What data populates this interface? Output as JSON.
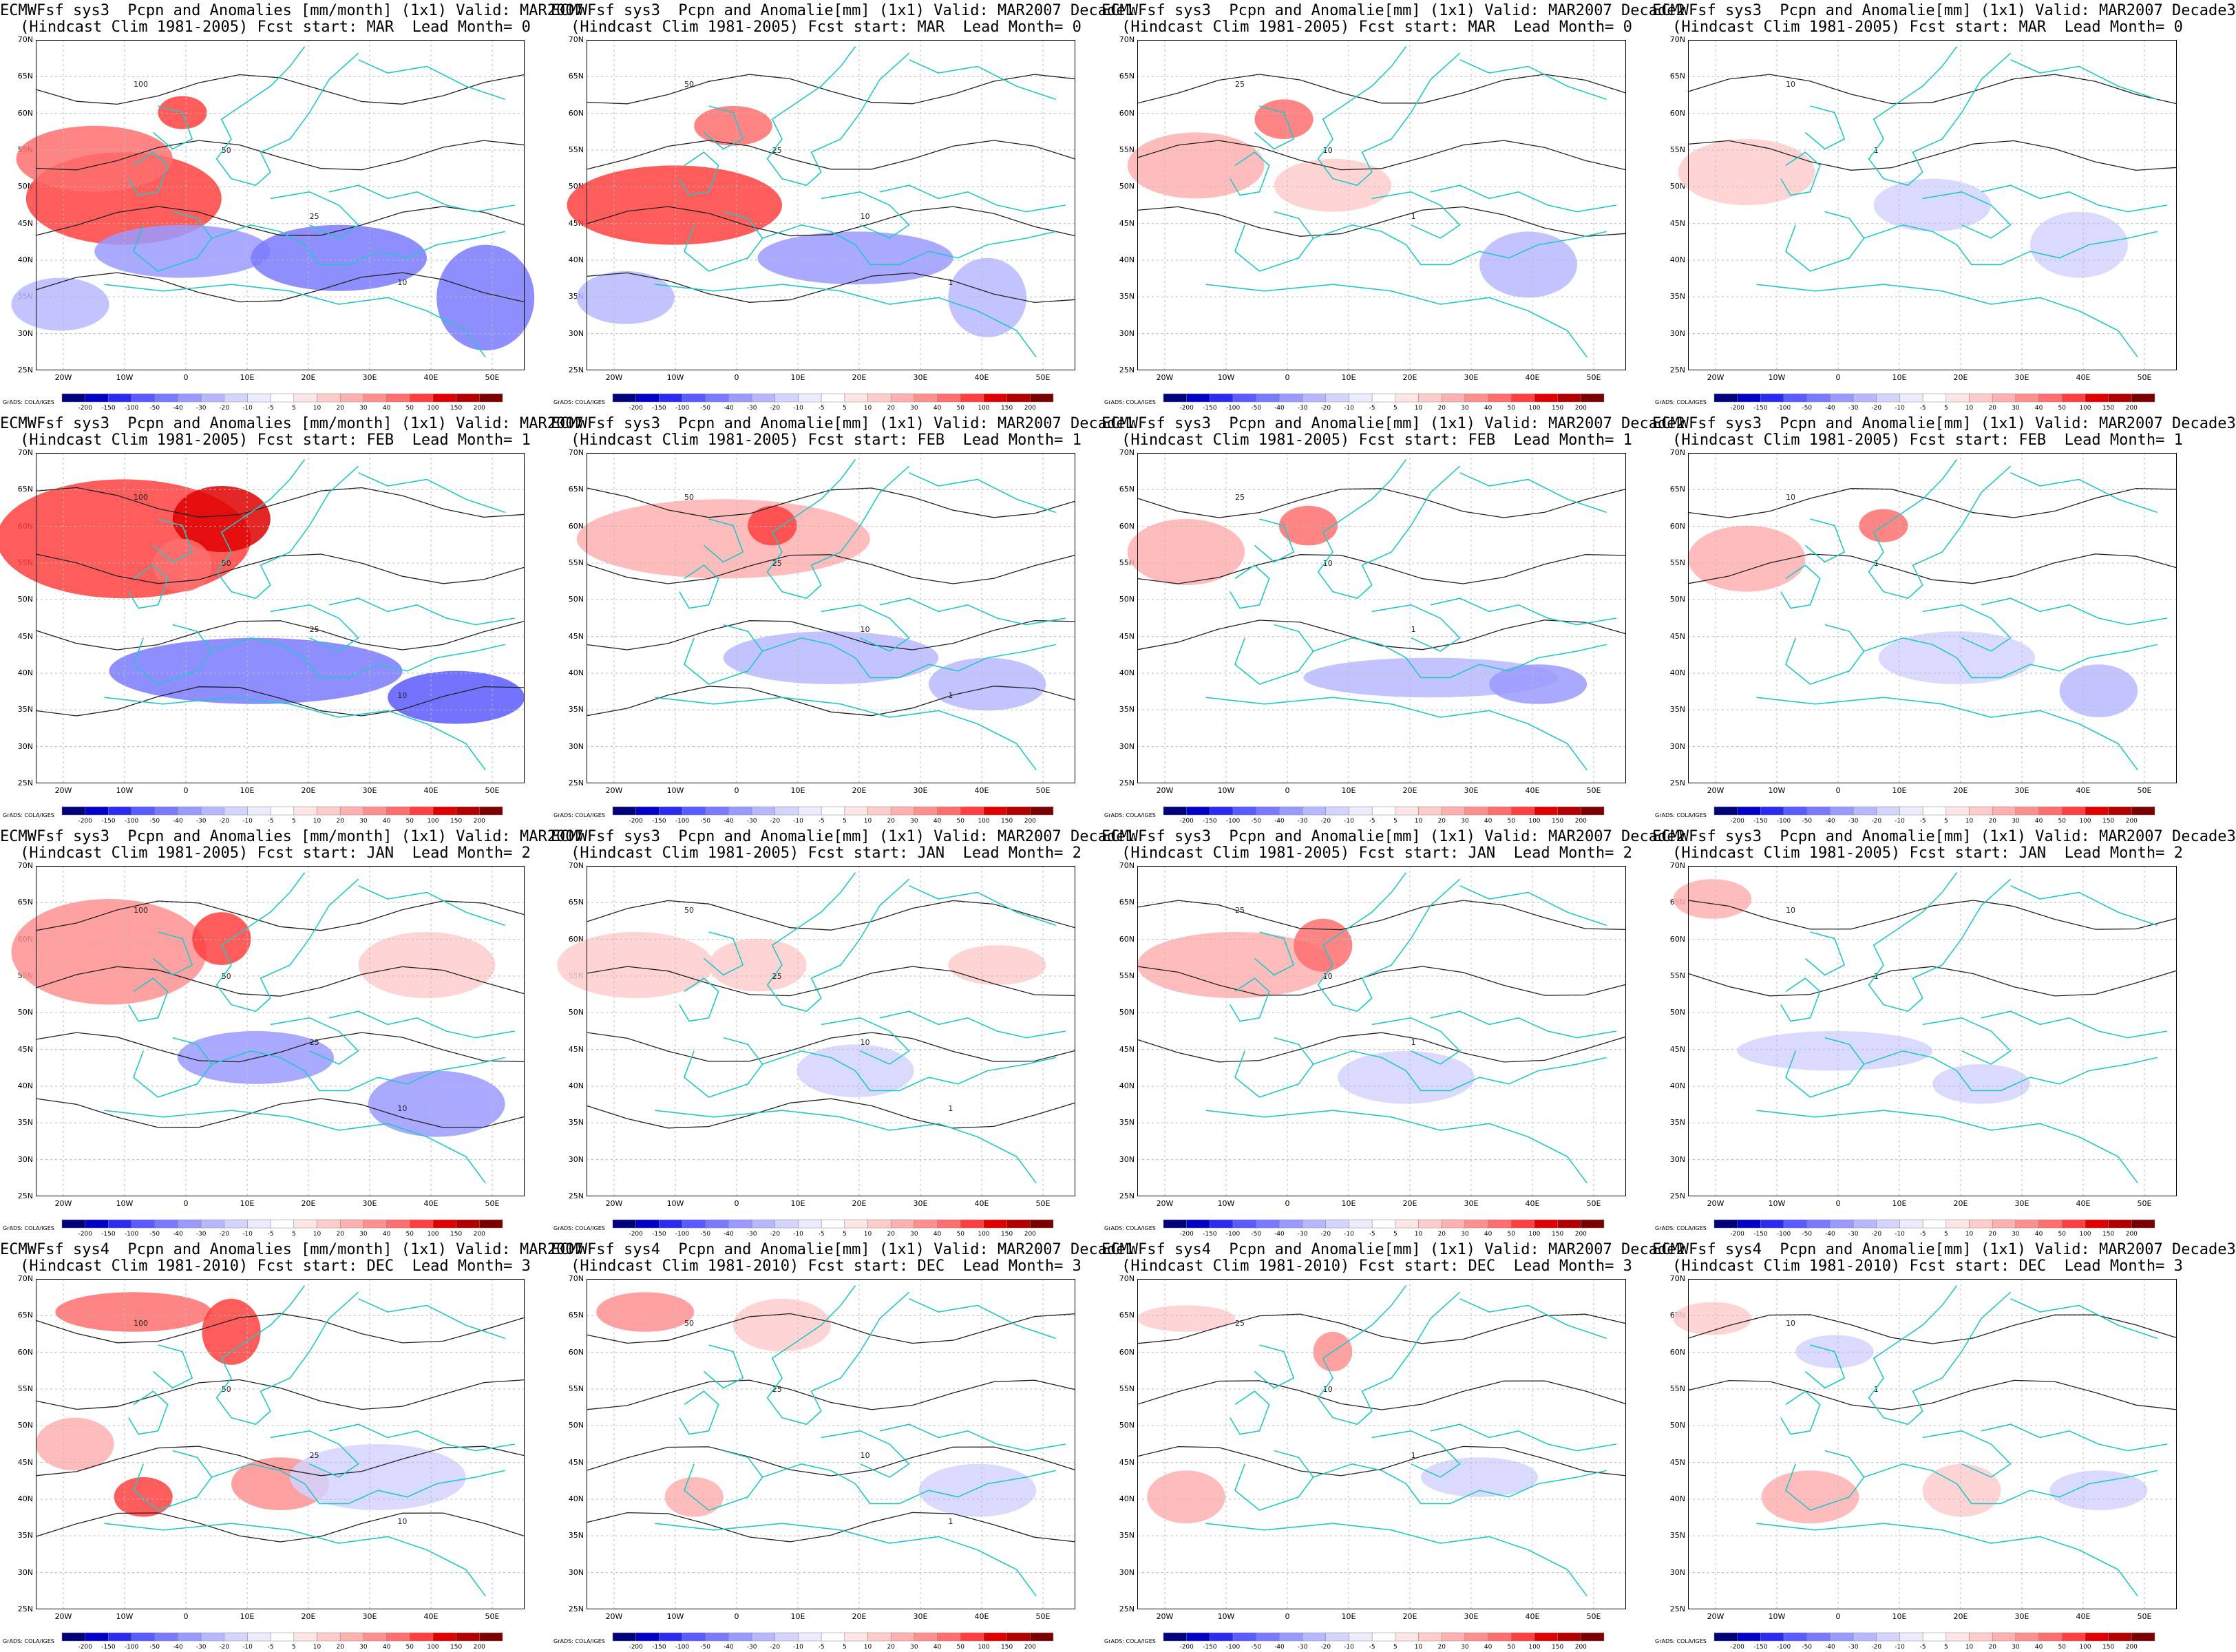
{
  "panels": [
    {
      "title1": "ECMWFsf sys3  Pcpn and Anomalies [mm/month] (1x1) Valid: MAR2007",
      "title2": "(Hindcast Clim 1981-2005) Fcst start: MAR  Lead Month= 0"
    },
    {
      "title1": "ECMWFsf sys3  Pcpn and Anomalie[mm] (1x1) Valid: MAR2007 Decade1",
      "title2": "(Hindcast Clim 1981-2005) Fcst start: MAR  Lead Month= 0"
    },
    {
      "title1": "ECMWFsf sys3  Pcpn and Anomalie[mm] (1x1) Valid: MAR2007 Decade2",
      "title2": "(Hindcast Clim 1981-2005) Fcst start: MAR  Lead Month= 0"
    },
    {
      "title1": "ECMWFsf sys3  Pcpn and Anomalie[mm] (1x1) Valid: MAR2007 Decade3",
      "title2": "(Hindcast Clim 1981-2005) Fcst start: MAR  Lead Month= 0"
    },
    {
      "title1": "ECMWFsf sys3  Pcpn and Anomalies [mm/month] (1x1) Valid: MAR2007",
      "title2": "(Hindcast Clim 1981-2005) Fcst start: FEB  Lead Month= 1"
    },
    {
      "title1": "ECMWFsf sys3  Pcpn and Anomalie[mm] (1x1) Valid: MAR2007 Decade1",
      "title2": "(Hindcast Clim 1981-2005) Fcst start: FEB  Lead Month= 1"
    },
    {
      "title1": "ECMWFsf sys3  Pcpn and Anomalie[mm] (1x1) Valid: MAR2007 Decade2",
      "title2": "(Hindcast Clim 1981-2005) Fcst start: FEB  Lead Month= 1"
    },
    {
      "title1": "ECMWFsf sys3  Pcpn and Anomalie[mm] (1x1) Valid: MAR2007 Decade3",
      "title2": "(Hindcast Clim 1981-2005) Fcst start: FEB  Lead Month= 1"
    },
    {
      "title1": "ECMWFsf sys3  Pcpn and Anomalies [mm/month] (1x1) Valid: MAR2007",
      "title2": "(Hindcast Clim 1981-2005) Fcst start: JAN  Lead Month= 2"
    },
    {
      "title1": "ECMWFsf sys3  Pcpn and Anomalie[mm] (1x1) Valid: MAR2007 Decade1",
      "title2": "(Hindcast Clim 1981-2005) Fcst start: JAN  Lead Month= 2"
    },
    {
      "title1": "ECMWFsf sys3  Pcpn and Anomalie[mm] (1x1) Valid: MAR2007 Decade2",
      "title2": "(Hindcast Clim 1981-2005) Fcst start: JAN  Lead Month= 2"
    },
    {
      "title1": "ECMWFsf sys3  Pcpn and Anomalie[mm] (1x1) Valid: MAR2007 Decade3",
      "title2": "(Hindcast Clim 1981-2005) Fcst start: JAN  Lead Month= 2"
    },
    {
      "title1": "ECMWFsf sys4  Pcpn and Anomalies [mm/month] (1x1) Valid: MAR2007",
      "title2": "(Hindcast Clim 1981-2010) Fcst start: DEC  Lead Month= 3"
    },
    {
      "title1": "ECMWFsf sys4  Pcpn and Anomalie[mm] (1x1) Valid: MAR2007 Decade1",
      "title2": "(Hindcast Clim 1981-2010) Fcst start: DEC  Lead Month= 3"
    },
    {
      "title1": "ECMWFsf sys4  Pcpn and Anomalie[mm] (1x1) Valid: MAR2007 Decade2",
      "title2": "(Hindcast Clim 1981-2010) Fcst start: DEC  Lead Month= 3"
    },
    {
      "title1": "ECMWFsf sys4  Pcpn and Anomalie[mm] (1x1) Valid: MAR2007 Decade3",
      "title2": "(Hindcast Clim 1981-2010) Fcst start: DEC  Lead Month= 3"
    }
  ],
  "lat_labels": [
    "70N",
    "65N",
    "60N",
    "55N",
    "50N",
    "45N",
    "40N",
    "35N",
    "30N",
    "25N"
  ],
  "lon_labels": [
    "20W",
    "10W",
    "0",
    "10E",
    "20E",
    "30E",
    "40E",
    "50E"
  ],
  "colorbar": {
    "values": [
      "-200",
      "-150",
      "-100",
      "-50",
      "-40",
      "-30",
      "-20",
      "-10",
      "-5",
      "5",
      "10",
      "20",
      "30",
      "40",
      "50",
      "100",
      "150",
      "200"
    ],
    "colors": [
      "#00007a",
      "#0000c8",
      "#2a2af0",
      "#5a5aff",
      "#7a7aff",
      "#9a9aff",
      "#b8b8ff",
      "#d4d4ff",
      "#ececff",
      "#ffffff",
      "#ffe6e6",
      "#ffcccc",
      "#ffb0b0",
      "#ff9090",
      "#ff6e6e",
      "#ff4040",
      "#e00000",
      "#b00000",
      "#7a0000"
    ]
  },
  "credit": "GrADS: COLA/IGES",
  "colors": {
    "coast": "#20c8c8",
    "contour": "#222222",
    "grid": "#bbbbbb",
    "positive": "#ff4040",
    "negative": "#5a5aff"
  }
}
